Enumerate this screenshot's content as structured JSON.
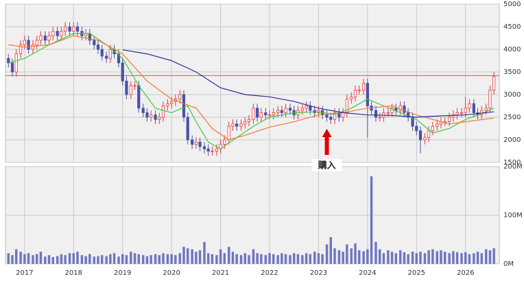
{
  "chart_data": {
    "type": "candlestick",
    "x": [
      2016.67,
      2016.75,
      2016.83,
      2016.92,
      2017.0,
      2017.08,
      2017.17,
      2017.25,
      2017.33,
      2017.42,
      2017.5,
      2017.58,
      2017.67,
      2017.75,
      2017.83,
      2017.92,
      2018.0,
      2018.08,
      2018.17,
      2018.25,
      2018.33,
      2018.42,
      2018.5,
      2018.58,
      2018.67,
      2018.75,
      2018.83,
      2018.92,
      2019.0,
      2019.08,
      2019.17,
      2019.25,
      2019.33,
      2019.42,
      2019.5,
      2019.58,
      2019.67,
      2019.75,
      2019.83,
      2019.92,
      2020.0,
      2020.08,
      2020.17,
      2020.25,
      2020.33,
      2020.42,
      2020.5,
      2020.58,
      2020.67,
      2020.75,
      2020.83,
      2020.92,
      2021.0,
      2021.08,
      2021.17,
      2021.25,
      2021.33,
      2021.42,
      2021.5,
      2021.58,
      2021.67,
      2021.75,
      2021.83,
      2021.92,
      2022.0,
      2022.08,
      2022.17,
      2022.25,
      2022.33,
      2022.42,
      2022.5,
      2022.58,
      2022.67,
      2022.75,
      2022.83,
      2022.92,
      2023.0,
      2023.08,
      2023.17,
      2023.25,
      2023.33,
      2023.42,
      2023.5,
      2023.58,
      2023.67,
      2023.75,
      2023.83,
      2023.92,
      2024.0,
      2024.08,
      2024.17,
      2024.25,
      2024.33,
      2024.42,
      2024.5,
      2024.58,
      2024.67,
      2024.75,
      2024.83,
      2024.92,
      2025.0,
      2025.08,
      2025.17,
      2025.25,
      2025.33,
      2025.42,
      2025.5,
      2025.58,
      2025.67,
      2025.75,
      2025.83,
      2025.92,
      2026.0,
      2026.08,
      2026.17,
      2026.25,
      2026.33,
      2026.42,
      2026.5,
      2026.58
    ],
    "open": [
      3800,
      3700,
      3500,
      3900,
      4100,
      4200,
      4000,
      4100,
      4200,
      4300,
      4200,
      4300,
      4400,
      4300,
      4400,
      4500,
      4400,
      4500,
      4400,
      4300,
      4350,
      4200,
      4100,
      4000,
      3850,
      3800,
      4000,
      3900,
      3700,
      3300,
      3000,
      3200,
      3200,
      2700,
      2600,
      2500,
      2550,
      2450,
      2500,
      2750,
      2800,
      2850,
      2900,
      3000,
      2500,
      2000,
      1900,
      1950,
      1850,
      1800,
      1750,
      1750,
      1800,
      1900,
      2000,
      2300,
      2350,
      2300,
      2350,
      2400,
      2450,
      2700,
      2500,
      2600,
      2550,
      2550,
      2600,
      2650,
      2600,
      2700,
      2650,
      2550,
      2650,
      2700,
      2750,
      2650,
      2600,
      2650,
      2550,
      2500,
      2450,
      2600,
      2500,
      2600,
      2900,
      2950,
      3100,
      3100,
      3250,
      2750,
      2650,
      2500,
      2500,
      2600,
      2600,
      2700,
      2650,
      2750,
      2600,
      2500,
      2300,
      2200,
      2000,
      2050,
      2200,
      2300,
      2350,
      2400,
      2400,
      2500,
      2550,
      2600,
      2600,
      2700,
      2800,
      2600,
      2550,
      2650,
      2700,
      3100
    ],
    "high": [
      3900,
      3800,
      4000,
      4200,
      4300,
      4300,
      4200,
      4300,
      4400,
      4400,
      4400,
      4500,
      4500,
      4500,
      4600,
      4600,
      4600,
      4600,
      4500,
      4450,
      4450,
      4300,
      4200,
      4100,
      3950,
      4100,
      4100,
      4000,
      3800,
      3400,
      3300,
      3300,
      3300,
      2800,
      2700,
      2650,
      2650,
      2600,
      2850,
      2900,
      2950,
      3000,
      3100,
      3100,
      2600,
      2100,
      2050,
      2050,
      1950,
      1900,
      1850,
      1900,
      2000,
      2100,
      2400,
      2450,
      2450,
      2450,
      2500,
      2550,
      2800,
      2800,
      2700,
      2700,
      2650,
      2700,
      2750,
      2750,
      2800,
      2800,
      2750,
      2750,
      2800,
      2850,
      2850,
      2750,
      2750,
      2750,
      2650,
      2600,
      2700,
      2700,
      2700,
      3000,
      3050,
      3200,
      3200,
      3350,
      3350,
      2850,
      2750,
      2600,
      2700,
      2700,
      2800,
      2800,
      2850,
      2850,
      2700,
      2600,
      2400,
      2300,
      2150,
      2300,
      2400,
      2450,
      2500,
      2500,
      2600,
      2650,
      2700,
      2700,
      2950,
      2900,
      2900,
      2700,
      2750,
      2800,
      3200,
      3500
    ],
    "low": [
      3600,
      3400,
      3400,
      3800,
      4000,
      3900,
      3900,
      4000,
      4100,
      4100,
      4100,
      4200,
      4200,
      4200,
      4300,
      4300,
      4300,
      4300,
      4200,
      4200,
      4100,
      4000,
      3900,
      3750,
      3700,
      3700,
      3800,
      3600,
      3200,
      2900,
      2900,
      3100,
      2600,
      2500,
      2400,
      2400,
      2350,
      2350,
      2400,
      2650,
      2700,
      2750,
      2800,
      2400,
      1900,
      1800,
      1800,
      1750,
      1700,
      1650,
      1650,
      1650,
      1700,
      1800,
      1900,
      2200,
      2200,
      2200,
      2250,
      2300,
      2350,
      2400,
      2400,
      2450,
      2450,
      2450,
      2500,
      2500,
      2500,
      2550,
      2450,
      2450,
      2550,
      2600,
      2550,
      2500,
      2500,
      2450,
      2400,
      2350,
      2350,
      2400,
      2400,
      2500,
      2800,
      2850,
      3000,
      3000,
      2050,
      2550,
      2400,
      2400,
      2400,
      2500,
      2500,
      2550,
      2550,
      2500,
      2400,
      2200,
      2100,
      1700,
      1900,
      1950,
      2100,
      2200,
      2250,
      2300,
      2300,
      2400,
      2450,
      2500,
      2500,
      2600,
      2500,
      2450,
      2450,
      2550,
      2600,
      3000
    ],
    "close": [
      3700,
      3500,
      3900,
      4100,
      4200,
      4000,
      4100,
      4200,
      4300,
      4200,
      4300,
      4400,
      4300,
      4400,
      4500,
      4400,
      4500,
      4400,
      4300,
      4350,
      4200,
      4100,
      4000,
      3850,
      3800,
      4000,
      3900,
      3700,
      3300,
      3000,
      3200,
      3200,
      2700,
      2600,
      2500,
      2550,
      2450,
      2500,
      2750,
      2800,
      2850,
      2900,
      3000,
      2500,
      2000,
      1900,
      1950,
      1850,
      1800,
      1750,
      1750,
      1800,
      1900,
      2000,
      2300,
      2350,
      2300,
      2350,
      2400,
      2450,
      2700,
      2500,
      2600,
      2550,
      2550,
      2600,
      2650,
      2600,
      2700,
      2650,
      2550,
      2650,
      2700,
      2750,
      2650,
      2600,
      2650,
      2550,
      2500,
      2450,
      2600,
      2500,
      2600,
      2900,
      2950,
      3100,
      3100,
      3250,
      2750,
      2650,
      2500,
      2500,
      2600,
      2600,
      2700,
      2650,
      2750,
      2600,
      2500,
      2300,
      2200,
      2000,
      2050,
      2200,
      2300,
      2350,
      2400,
      2400,
      2500,
      2550,
      2600,
      2600,
      2700,
      2800,
      2600,
      2550,
      2650,
      2700,
      3100,
      3400
    ],
    "up_color": "#e0393b",
    "down_color": "#4a52a6",
    "moving_averages": [
      {
        "color": "#3cc83c",
        "x": [
          2016.67,
          2017.0,
          2017.5,
          2018.0,
          2018.33,
          2018.67,
          2019.0,
          2019.33,
          2019.67,
          2020.0,
          2020.33,
          2020.5,
          2020.75,
          2021.0,
          2021.33,
          2021.67,
          2022.0,
          2022.5,
          2023.0,
          2023.33,
          2023.67,
          2024.0,
          2024.33,
          2024.67,
          2025.0,
          2025.33,
          2025.67,
          2026.0,
          2026.33,
          2026.58
        ],
        "values": [
          3700,
          3800,
          4100,
          4350,
          4350,
          4100,
          3800,
          3200,
          2700,
          2600,
          2750,
          2400,
          1950,
          1800,
          2050,
          2300,
          2500,
          2600,
          2620,
          2560,
          2700,
          2900,
          2750,
          2600,
          2450,
          2150,
          2250,
          2450,
          2580,
          2700
        ]
      },
      {
        "color": "#f07830",
        "x": [
          2016.67,
          2017.0,
          2017.5,
          2018.0,
          2018.5,
          2019.0,
          2019.5,
          2020.0,
          2020.5,
          2020.83,
          2021.17,
          2021.5,
          2022.0,
          2022.5,
          2023.0,
          2023.5,
          2024.0,
          2024.5,
          2025.0,
          2025.33,
          2025.67,
          2026.0,
          2026.58
        ],
        "values": [
          4100,
          4050,
          4100,
          4300,
          4200,
          3900,
          3300,
          2900,
          2700,
          2250,
          2000,
          2100,
          2280,
          2400,
          2550,
          2600,
          2700,
          2750,
          2550,
          2450,
          2350,
          2400,
          2480
        ]
      },
      {
        "color": "#2a2a9a",
        "x": [
          2019.0,
          2019.5,
          2020.0,
          2020.5,
          2021.0,
          2021.5,
          2022.0,
          2022.5,
          2023.0,
          2023.5,
          2024.0,
          2024.5,
          2025.0,
          2025.5,
          2026.0,
          2026.58
        ],
        "values": [
          3990,
          3900,
          3750,
          3500,
          3150,
          3000,
          2950,
          2850,
          2700,
          2600,
          2550,
          2540,
          2500,
          2530,
          2550,
          2620
        ]
      }
    ],
    "reference_line": {
      "value": 3420,
      "color": "#d05050"
    },
    "annotation": {
      "text": "購入",
      "x": 2023.17,
      "color": "#e00000"
    },
    "xlim": [
      2016.61,
      2026.69
    ],
    "xticks": [
      2017,
      2018,
      2019,
      2020,
      2021,
      2022,
      2023,
      2024,
      2025,
      2026
    ],
    "ylim": [
      1500,
      5000
    ],
    "yticks": [
      1500,
      2000,
      2500,
      3000,
      3500,
      4000,
      4500,
      5000
    ],
    "grid": true,
    "volume": {
      "color": "#6e76c0",
      "values": [
        22,
        18,
        30,
        25,
        20,
        22,
        18,
        20,
        25,
        15,
        18,
        14,
        16,
        20,
        18,
        22,
        22,
        25,
        18,
        16,
        20,
        15,
        16,
        18,
        16,
        20,
        22,
        15,
        20,
        18,
        25,
        22,
        20,
        18,
        16,
        18,
        20,
        18,
        22,
        20,
        20,
        18,
        22,
        35,
        32,
        30,
        25,
        28,
        45,
        22,
        20,
        18,
        30,
        22,
        35,
        25,
        20,
        18,
        22,
        18,
        30,
        22,
        20,
        18,
        22,
        20,
        18,
        22,
        20,
        18,
        22,
        20,
        18,
        22,
        20,
        25,
        22,
        20,
        40,
        55,
        32,
        28,
        25,
        40,
        32,
        42,
        28,
        26,
        30,
        180,
        45,
        30,
        22,
        28,
        25,
        22,
        28,
        24,
        20,
        25,
        22,
        25,
        22,
        28,
        30,
        26,
        28,
        25,
        22,
        26,
        24,
        22,
        24,
        20,
        22,
        25,
        22,
        30,
        28,
        32
      ],
      "ylim": [
        0,
        200
      ],
      "yticks": [
        {
          "value": 0,
          "label": "0M"
        },
        {
          "value": 100,
          "label": "100M"
        },
        {
          "value": 200,
          "label": "200M"
        }
      ]
    }
  }
}
